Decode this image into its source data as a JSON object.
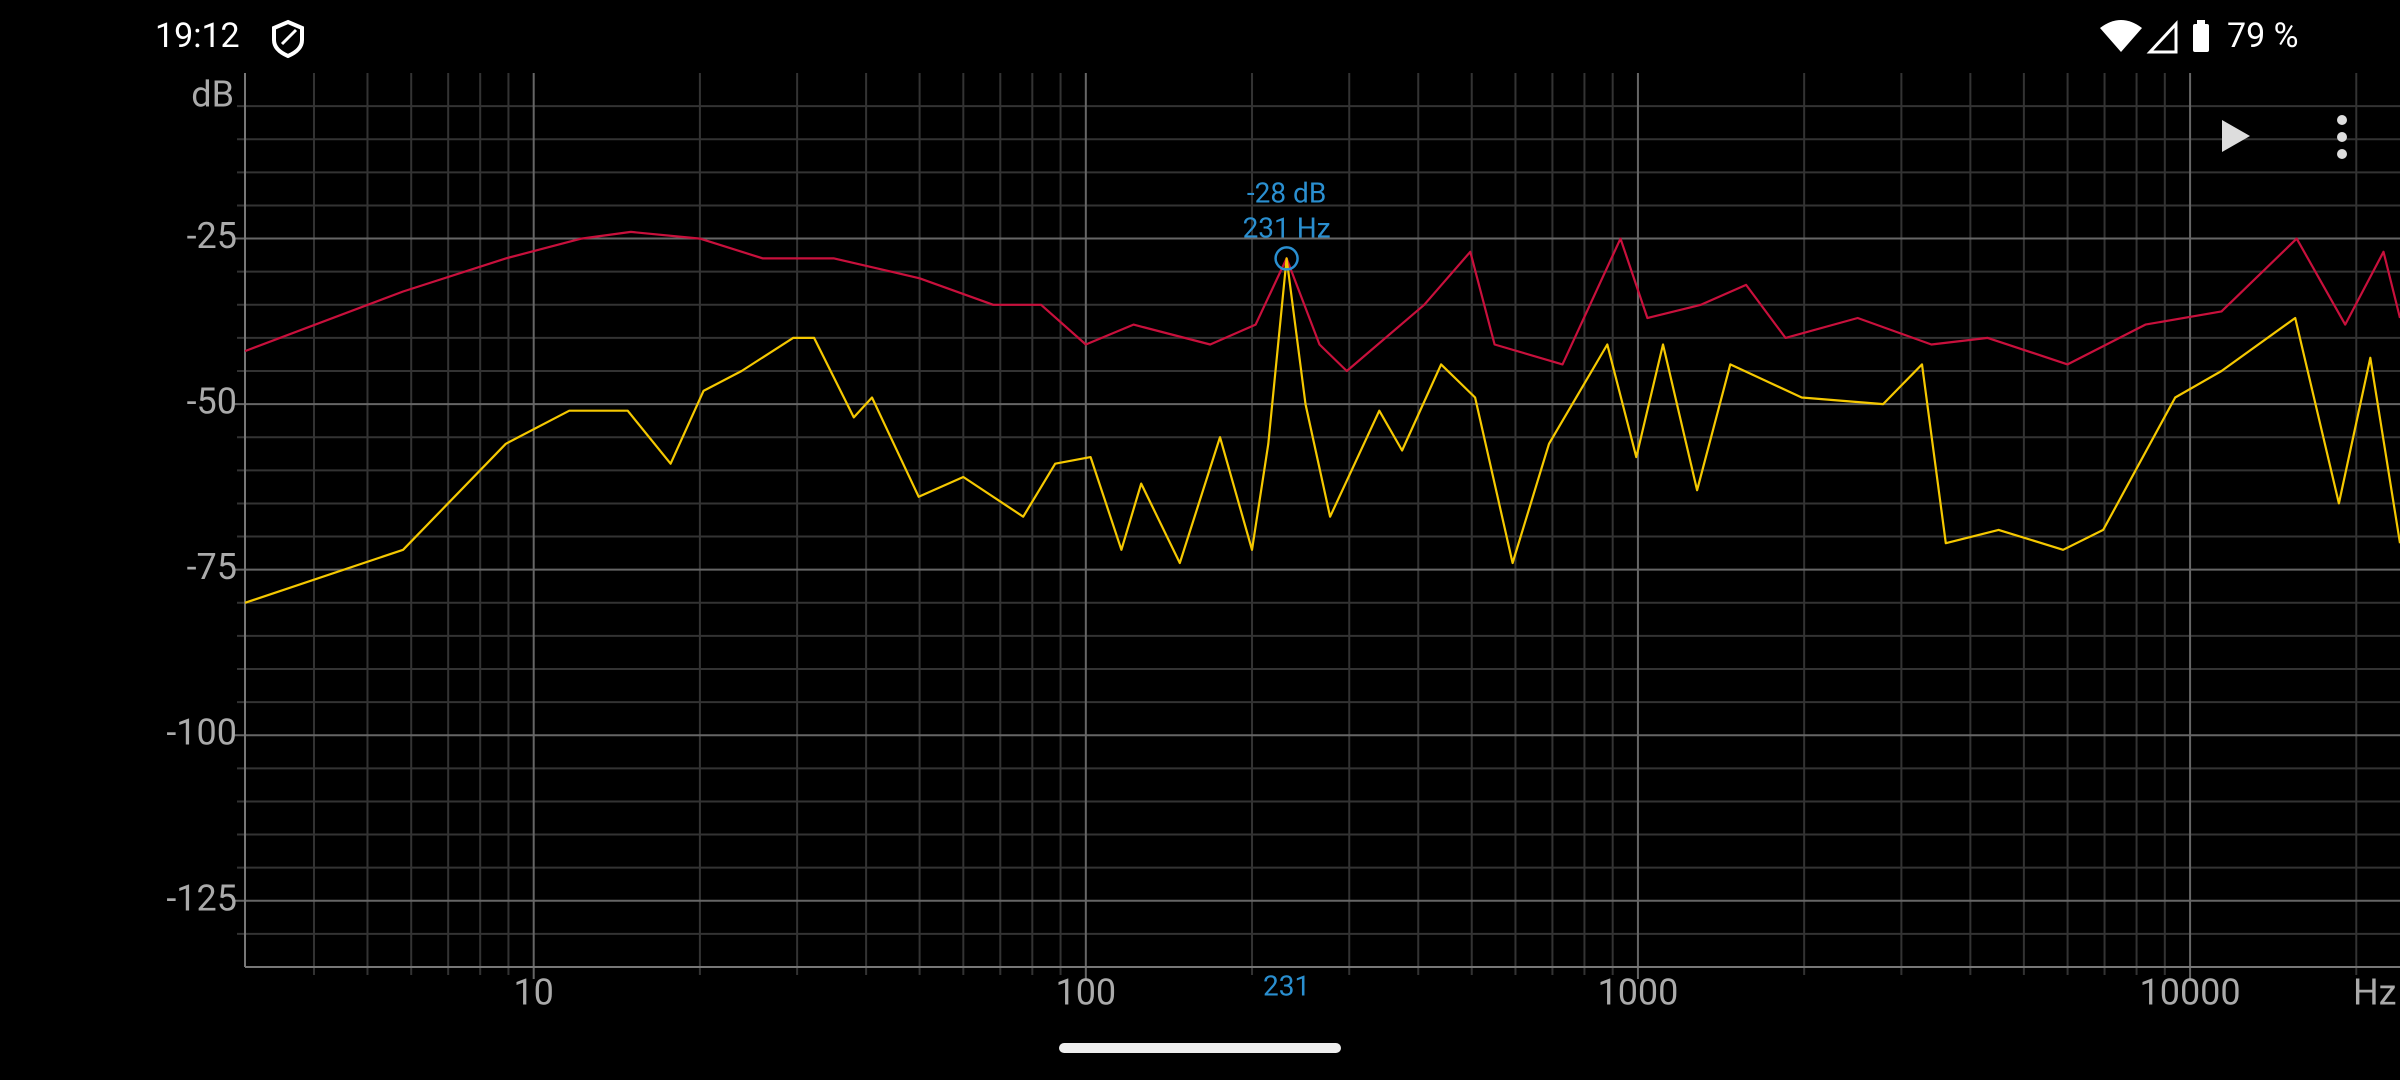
{
  "status_bar": {
    "time": "19:12",
    "battery": "79 %"
  },
  "chart_data": {
    "type": "line",
    "xscale": "log",
    "grid": true,
    "x_label": "Hz",
    "y_label": "dB",
    "xlim": [
      3,
      24000
    ],
    "ylim": [
      -135,
      0
    ],
    "xticks": [
      10,
      100,
      1000,
      10000
    ],
    "yticks": [
      -125,
      -100,
      -75,
      -50,
      -25
    ],
    "minor_xticks": [
      4,
      5,
      6,
      7,
      8,
      9,
      20,
      30,
      40,
      50,
      60,
      70,
      80,
      90,
      200,
      300,
      400,
      500,
      600,
      700,
      800,
      900,
      2000,
      3000,
      4000,
      5000,
      6000,
      7000,
      8000,
      9000,
      20000
    ],
    "minor_yticks": [
      -130,
      -120,
      -115,
      -110,
      -105,
      -95,
      -90,
      -85,
      -80,
      -70,
      -65,
      -60,
      -55,
      -45,
      -40,
      -35,
      -30,
      -20,
      -15,
      -10,
      -5
    ],
    "series": [
      {
        "color": "#c8103c",
        "x": [
          3,
          5.8,
          8.9,
          12.2,
          15,
          20,
          26,
          35,
          50,
          68,
          83,
          100,
          122,
          168,
          203,
          231,
          265,
          297,
          410,
          497,
          550,
          730,
          930,
          1040,
          1300,
          1570,
          1850,
          2500,
          3400,
          4300,
          6000,
          8300,
          11400,
          15600,
          19100,
          22400,
          24000
        ],
        "values": [
          -42,
          -33,
          -28,
          -25,
          -24,
          -25,
          -28,
          -28,
          -31,
          -35,
          -35,
          -41,
          -38,
          -41,
          -38,
          -28,
          -41,
          -45,
          -35,
          -27,
          -41,
          -44,
          -25,
          -37,
          -35,
          -32,
          -40,
          -37,
          -41,
          -40,
          -44,
          -38,
          -36,
          -25,
          -38,
          -27,
          -37
        ]
      },
      {
        "color": "#f5c800",
        "x": [
          3,
          5.8,
          8.9,
          11.6,
          14.8,
          17.7,
          20.3,
          23.8,
          29.5,
          32.2,
          38,
          41,
          49.8,
          60,
          77,
          88,
          102,
          116,
          126,
          148,
          175,
          200,
          214,
          231,
          250,
          277,
          340,
          374,
          440,
          507,
          593,
          690,
          880,
          993,
          1110,
          1280,
          1470,
          1980,
          2780,
          3270,
          3610,
          4500,
          5890,
          6960,
          9400,
          11400,
          15500,
          18600,
          21200,
          24000
        ],
        "values": [
          -80,
          -72,
          -56,
          -51,
          -51,
          -59,
          -48,
          -45,
          -40,
          -40,
          -52,
          -49,
          -64,
          -61,
          -67,
          -59,
          -58,
          -72,
          -62,
          -74,
          -55,
          -72,
          -56,
          -28,
          -50,
          -67,
          -51,
          -57,
          -44,
          -49,
          -74,
          -56,
          -41,
          -58,
          -41,
          -63,
          -44,
          -49,
          -50,
          -44,
          -71,
          -69,
          -72,
          -69,
          -49,
          -45,
          -37,
          -65,
          -43,
          -71
        ]
      }
    ],
    "marker": {
      "x": 231,
      "y": -28,
      "labels": [
        "-28 dB",
        "231 Hz"
      ]
    }
  }
}
